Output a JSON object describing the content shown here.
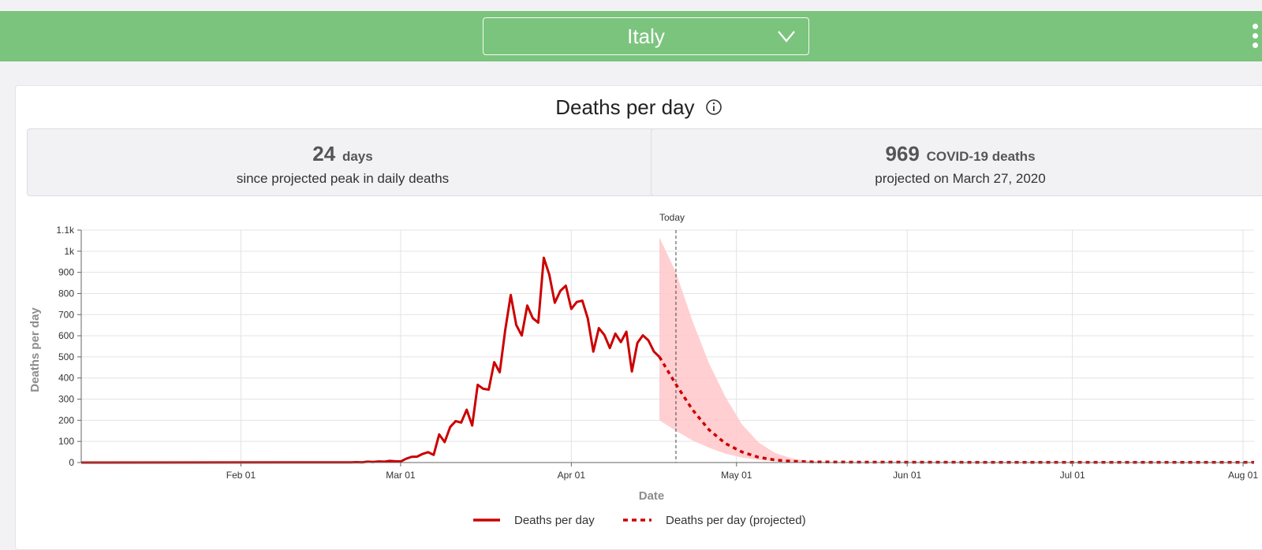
{
  "header": {
    "country": "Italy",
    "colors": {
      "bar": "#7bc47d",
      "text": "#ffffff"
    }
  },
  "panel": {
    "title": "Deaths per day"
  },
  "stats": [
    {
      "value": "24",
      "unit": "days",
      "caption": "since projected peak in daily deaths"
    },
    {
      "value": "969",
      "unit": "COVID-19 deaths",
      "caption": "projected on March 27, 2020"
    }
  ],
  "chart_data": {
    "type": "line",
    "xlabel": "Date",
    "ylabel": "Deaths per day",
    "xlim": [
      "2020-01-03",
      "2020-08-03"
    ],
    "ylim": [
      0,
      1100
    ],
    "y_ticks": [
      0,
      100,
      200,
      300,
      400,
      500,
      600,
      700,
      800,
      900,
      1000,
      1100
    ],
    "y_tick_labels": [
      "0",
      "100",
      "200",
      "300",
      "400",
      "500",
      "600",
      "700",
      "800",
      "900",
      "1k",
      "1.1k"
    ],
    "x_ticks": [
      "2020-02-01",
      "2020-03-01",
      "2020-04-01",
      "2020-05-01",
      "2020-06-01",
      "2020-07-01",
      "2020-08-01"
    ],
    "x_tick_labels": [
      "Feb 01",
      "Mar 01",
      "Apr 01",
      "May 01",
      "Jun 01",
      "Jul 01",
      "Aug 01"
    ],
    "grid": true,
    "legend": "bottom",
    "annotation": {
      "label": "Today",
      "x": "2020-04-20"
    },
    "colors": {
      "line": "#cc0000",
      "band": "#ffc7c9"
    },
    "series": [
      {
        "name": "Deaths per day",
        "style": "solid",
        "x": [
          "2020-01-03",
          "2020-02-21",
          "2020-02-22",
          "2020-02-23",
          "2020-02-24",
          "2020-02-25",
          "2020-02-26",
          "2020-02-27",
          "2020-02-28",
          "2020-02-29",
          "2020-03-01",
          "2020-03-02",
          "2020-03-03",
          "2020-03-04",
          "2020-03-05",
          "2020-03-06",
          "2020-03-07",
          "2020-03-08",
          "2020-03-09",
          "2020-03-10",
          "2020-03-11",
          "2020-03-12",
          "2020-03-13",
          "2020-03-14",
          "2020-03-15",
          "2020-03-16",
          "2020-03-17",
          "2020-03-18",
          "2020-03-19",
          "2020-03-20",
          "2020-03-21",
          "2020-03-22",
          "2020-03-23",
          "2020-03-24",
          "2020-03-25",
          "2020-03-26",
          "2020-03-27",
          "2020-03-28",
          "2020-03-29",
          "2020-03-30",
          "2020-03-31",
          "2020-04-01",
          "2020-04-02",
          "2020-04-03",
          "2020-04-04",
          "2020-04-05",
          "2020-04-06",
          "2020-04-07",
          "2020-04-08",
          "2020-04-09",
          "2020-04-10",
          "2020-04-11",
          "2020-04-12",
          "2020-04-13",
          "2020-04-14",
          "2020-04-15",
          "2020-04-16",
          "2020-04-17"
        ],
        "values": [
          0,
          1,
          2,
          1,
          4,
          3,
          5,
          4,
          8,
          6,
          5,
          18,
          27,
          28,
          41,
          49,
          36,
          133,
          97,
          168,
          196,
          189,
          250,
          175,
          368,
          349,
          345,
          475,
          427,
          627,
          793,
          651,
          601,
          743,
          683,
          662,
          969,
          889,
          756,
          812,
          837,
          727,
          760,
          766,
          681,
          525,
          636,
          604,
          542,
          610,
          570,
          619,
          431,
          566,
          602,
          578,
          525,
          500
        ]
      },
      {
        "name": "Deaths per day (projected)",
        "style": "dashed",
        "x": [
          "2020-04-17",
          "2020-04-20",
          "2020-04-23",
          "2020-04-26",
          "2020-04-29",
          "2020-05-02",
          "2020-05-05",
          "2020-05-08",
          "2020-05-11",
          "2020-05-15",
          "2020-05-22",
          "2020-06-15",
          "2020-07-15",
          "2020-08-03"
        ],
        "values": [
          500,
          370,
          250,
          155,
          90,
          50,
          25,
          12,
          6,
          3,
          2,
          1,
          1,
          1
        ]
      }
    ],
    "band": {
      "x": [
        "2020-04-17",
        "2020-04-20",
        "2020-04-23",
        "2020-04-26",
        "2020-04-29",
        "2020-05-02",
        "2020-05-05",
        "2020-05-08",
        "2020-05-11",
        "2020-05-14",
        "2020-05-18"
      ],
      "upper": [
        1065,
        900,
        670,
        470,
        310,
        180,
        95,
        45,
        20,
        8,
        3
      ],
      "lower": [
        200,
        150,
        105,
        70,
        42,
        24,
        12,
        6,
        3,
        1,
        0
      ]
    }
  }
}
